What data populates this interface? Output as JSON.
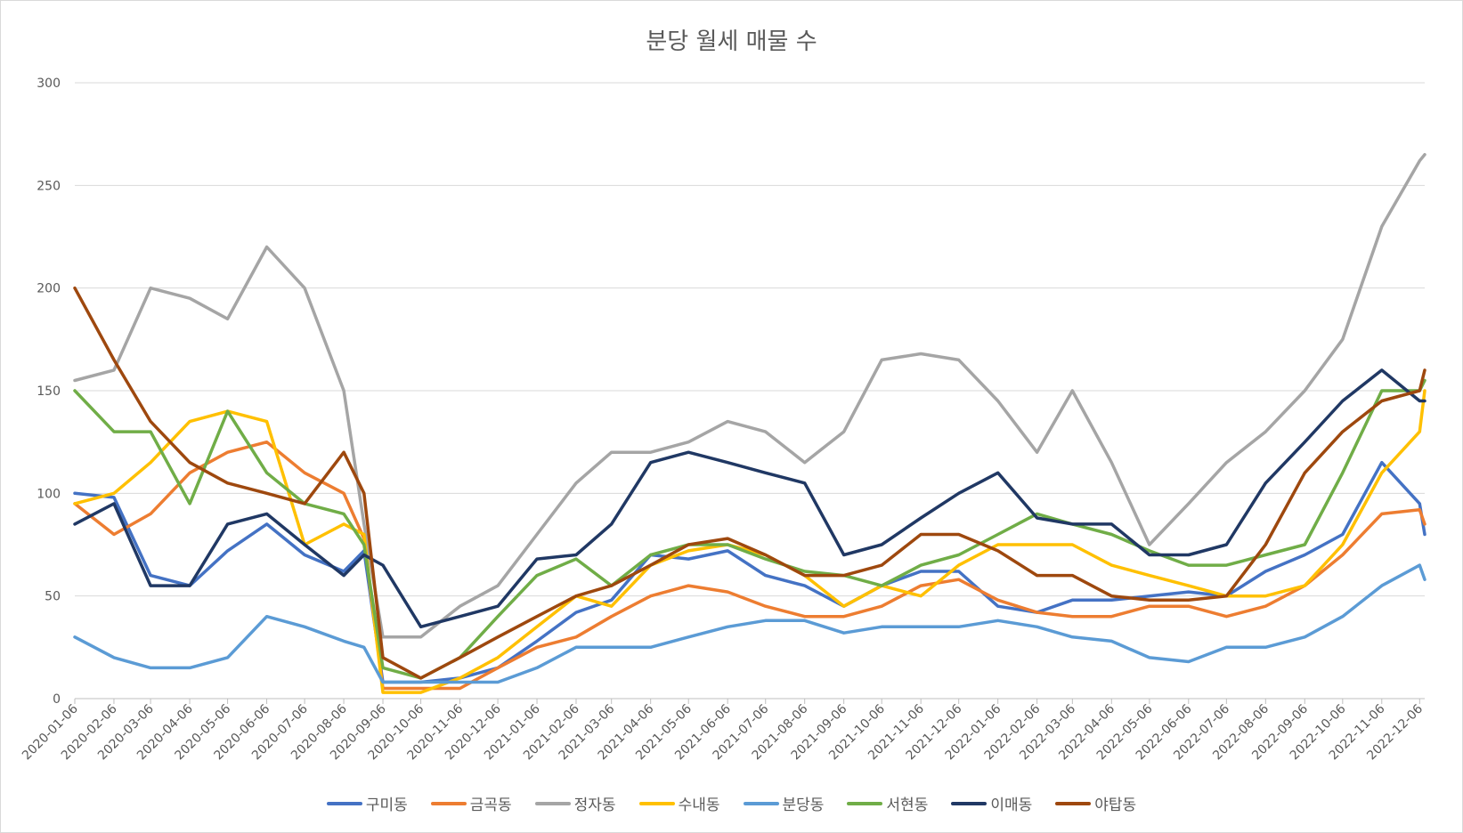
{
  "chart_data": {
    "type": "line",
    "title": "분당 월세 매물 수",
    "xlabel": "",
    "ylabel": "",
    "ylim": [
      0,
      300
    ],
    "yticks": [
      0,
      50,
      100,
      150,
      200,
      250,
      300
    ],
    "grid": true,
    "legend_position": "bottom",
    "x_tick_labels": [
      "2020-01-06",
      "2020-02-06",
      "2020-03-06",
      "2020-04-06",
      "2020-05-06",
      "2020-06-06",
      "2020-07-06",
      "2020-08-06",
      "2020-09-06",
      "2020-10-06",
      "2020-11-06",
      "2020-12-06",
      "2021-01-06",
      "2021-02-06",
      "2021-03-06",
      "2021-04-06",
      "2021-05-06",
      "2021-06-06",
      "2021-07-06",
      "2021-08-06",
      "2021-09-06",
      "2021-10-06",
      "2021-11-06",
      "2021-12-06",
      "2022-01-06",
      "2022-02-06",
      "2022-03-06",
      "2022-04-06",
      "2022-05-06",
      "2022-06-06",
      "2022-07-06",
      "2022-08-06",
      "2022-09-06",
      "2022-10-06",
      "2022-11-06",
      "2022-12-06"
    ],
    "x": [
      "2020-01-06",
      "2020-02-06",
      "2020-03-06",
      "2020-04-06",
      "2020-05-06",
      "2020-06-06",
      "2020-07-06",
      "2020-08-06",
      "2020-08-22",
      "2020-09-06",
      "2020-10-06",
      "2020-11-06",
      "2020-12-06",
      "2021-01-06",
      "2021-02-06",
      "2021-03-06",
      "2021-04-06",
      "2021-05-06",
      "2021-06-06",
      "2021-07-06",
      "2021-08-06",
      "2021-09-06",
      "2021-10-06",
      "2021-11-06",
      "2021-12-06",
      "2022-01-06",
      "2022-02-06",
      "2022-03-06",
      "2022-04-06",
      "2022-05-06",
      "2022-06-06",
      "2022-07-06",
      "2022-08-06",
      "2022-09-06",
      "2022-10-06",
      "2022-11-06",
      "2022-12-06",
      "2022-12-10"
    ],
    "series": [
      {
        "name": "구미동",
        "color": "#4472c4",
        "values": [
          100,
          98,
          60,
          55,
          72,
          85,
          70,
          62,
          72,
          8,
          8,
          10,
          15,
          28,
          42,
          48,
          70,
          68,
          72,
          60,
          55,
          45,
          55,
          62,
          62,
          45,
          42,
          48,
          48,
          50,
          52,
          50,
          62,
          70,
          80,
          115,
          95,
          80
        ]
      },
      {
        "name": "금곡동",
        "color": "#ed7d31",
        "values": [
          95,
          80,
          90,
          110,
          120,
          125,
          110,
          100,
          78,
          5,
          5,
          5,
          15,
          25,
          30,
          40,
          50,
          55,
          52,
          45,
          40,
          40,
          45,
          55,
          58,
          48,
          42,
          40,
          40,
          45,
          45,
          40,
          45,
          55,
          70,
          90,
          92,
          85
        ]
      },
      {
        "name": "정자동",
        "color": "#a5a5a5",
        "values": [
          155,
          160,
          200,
          195,
          185,
          220,
          200,
          150,
          85,
          30,
          30,
          45,
          55,
          80,
          105,
          120,
          120,
          125,
          135,
          130,
          115,
          130,
          165,
          168,
          165,
          145,
          120,
          150,
          115,
          75,
          95,
          115,
          130,
          150,
          175,
          230,
          262,
          265
        ]
      },
      {
        "name": "수내동",
        "color": "#ffc000",
        "values": [
          95,
          100,
          115,
          135,
          140,
          135,
          75,
          85,
          80,
          3,
          3,
          10,
          20,
          35,
          50,
          45,
          65,
          72,
          75,
          70,
          60,
          45,
          55,
          50,
          65,
          75,
          75,
          75,
          65,
          60,
          55,
          50,
          50,
          55,
          75,
          110,
          130,
          150
        ]
      },
      {
        "name": "분당동",
        "color": "#5b9bd5",
        "values": [
          30,
          20,
          15,
          15,
          20,
          40,
          35,
          28,
          25,
          8,
          8,
          8,
          8,
          15,
          25,
          25,
          25,
          30,
          35,
          38,
          38,
          32,
          35,
          35,
          35,
          38,
          35,
          30,
          28,
          20,
          18,
          25,
          25,
          30,
          40,
          55,
          65,
          58
        ]
      },
      {
        "name": "서현동",
        "color": "#70ad47",
        "values": [
          150,
          130,
          130,
          95,
          140,
          110,
          95,
          90,
          75,
          15,
          10,
          20,
          40,
          60,
          68,
          55,
          70,
          75,
          75,
          68,
          62,
          60,
          55,
          65,
          70,
          80,
          90,
          85,
          80,
          72,
          65,
          65,
          70,
          75,
          110,
          150,
          150,
          155
        ]
      },
      {
        "name": "이매동",
        "color": "#203864",
        "values": [
          85,
          95,
          55,
          55,
          85,
          90,
          75,
          60,
          70,
          65,
          35,
          40,
          45,
          68,
          70,
          85,
          115,
          120,
          115,
          110,
          105,
          70,
          75,
          88,
          100,
          110,
          88,
          85,
          85,
          70,
          70,
          75,
          105,
          125,
          145,
          160,
          145,
          145
        ]
      },
      {
        "name": "야탑동",
        "color": "#9e480e",
        "values": [
          200,
          165,
          135,
          115,
          105,
          100,
          95,
          120,
          100,
          20,
          10,
          20,
          30,
          40,
          50,
          55,
          65,
          75,
          78,
          70,
          60,
          60,
          65,
          80,
          80,
          72,
          60,
          60,
          50,
          48,
          48,
          50,
          75,
          110,
          130,
          145,
          150,
          160
        ]
      }
    ]
  }
}
